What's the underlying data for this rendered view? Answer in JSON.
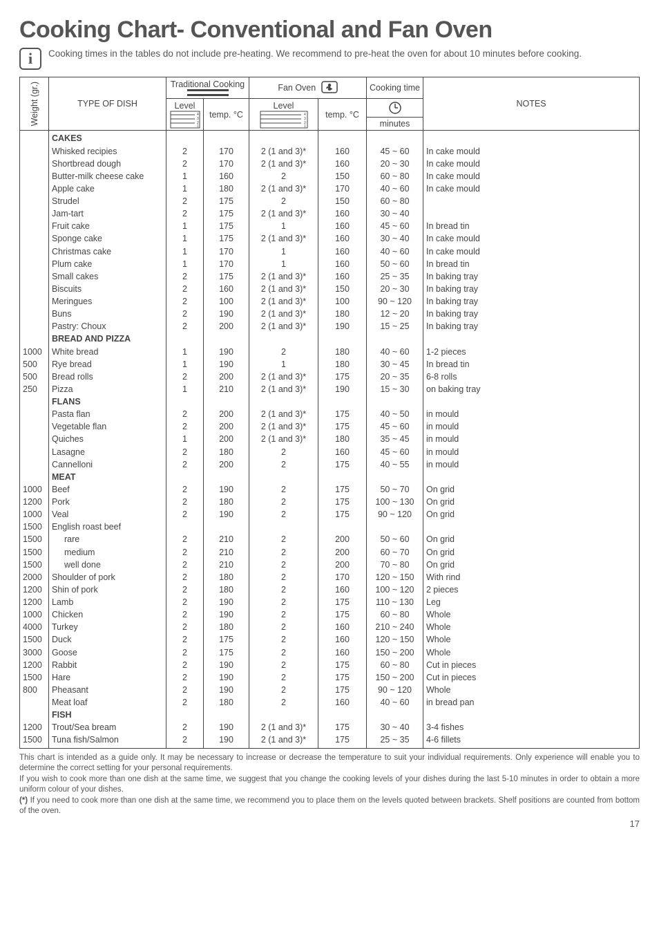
{
  "title": "Cooking Chart- Conventional and Fan Oven",
  "info_text": "Cooking times in the tables do not include pre-heating. We recommend to pre-heat the oven for about 10 minutes before cooking.",
  "header": {
    "weight": "Weight (gr.)",
    "type_of_dish": "TYPE OF DISH",
    "traditional": "Traditional Cooking",
    "fan_oven": "Fan Oven",
    "cooking_time": "Cooking time",
    "level": "Level",
    "temp_c": "temp. °C",
    "minutes": "minutes",
    "notes": "NOTES"
  },
  "sections": [
    {
      "heading": "CAKES",
      "rows": [
        {
          "w": "",
          "dish": "Whisked recipies",
          "l1": "2",
          "t1": "170",
          "l2": "2 (1 and 3)*",
          "t2": "160",
          "time": "45 ~ 60",
          "notes": "In cake mould"
        },
        {
          "w": "",
          "dish": "Shortbread dough",
          "l1": "2",
          "t1": "170",
          "l2": "2 (1 and 3)*",
          "t2": "160",
          "time": "20 ~ 30",
          "notes": "In cake mould"
        },
        {
          "w": "",
          "dish": "Butter-milk cheese cake",
          "l1": "1",
          "t1": "160",
          "l2": "2",
          "t2": "150",
          "time": "60 ~ 80",
          "notes": "In cake mould"
        },
        {
          "w": "",
          "dish": "Apple cake",
          "l1": "1",
          "t1": "180",
          "l2": "2 (1 and 3)*",
          "t2": "170",
          "time": "40 ~ 60",
          "notes": "In cake mould"
        },
        {
          "w": "",
          "dish": "Strudel",
          "l1": "2",
          "t1": "175",
          "l2": "2",
          "t2": "150",
          "time": "60 ~ 80",
          "notes": ""
        },
        {
          "w": "",
          "dish": "Jam-tart",
          "l1": "2",
          "t1": "175",
          "l2": "2 (1 and 3)*",
          "t2": "160",
          "time": "30 ~ 40",
          "notes": ""
        },
        {
          "w": "",
          "dish": "Fruit cake",
          "l1": "1",
          "t1": "175",
          "l2": "1",
          "t2": "160",
          "time": "45 ~ 60",
          "notes": "In bread tin"
        },
        {
          "w": "",
          "dish": "Sponge cake",
          "l1": "1",
          "t1": "175",
          "l2": "2 (1 and 3)*",
          "t2": "160",
          "time": "30 ~ 40",
          "notes": "In cake mould"
        },
        {
          "w": "",
          "dish": "Christmas cake",
          "l1": "1",
          "t1": "170",
          "l2": "1",
          "t2": "160",
          "time": "40 ~ 60",
          "notes": "In cake mould"
        },
        {
          "w": "",
          "dish": "Plum cake",
          "l1": "1",
          "t1": "170",
          "l2": "1",
          "t2": "160",
          "time": "50 ~ 60",
          "notes": "In bread tin"
        },
        {
          "w": "",
          "dish": "Small cakes",
          "l1": "2",
          "t1": "175",
          "l2": "2 (1 and 3)*",
          "t2": "160",
          "time": "25 ~ 35",
          "notes": "In baking tray"
        },
        {
          "w": "",
          "dish": "Biscuits",
          "l1": "2",
          "t1": "160",
          "l2": "2 (1 and 3)*",
          "t2": "150",
          "time": "20 ~ 30",
          "notes": "In baking tray"
        },
        {
          "w": "",
          "dish": "Meringues",
          "l1": "2",
          "t1": "100",
          "l2": "2 (1 and 3)*",
          "t2": "100",
          "time": "90 ~ 120",
          "notes": "In baking tray"
        },
        {
          "w": "",
          "dish": "Buns",
          "l1": "2",
          "t1": "190",
          "l2": "2 (1 and 3)*",
          "t2": "180",
          "time": "12 ~ 20",
          "notes": "In baking tray"
        },
        {
          "w": "",
          "dish": "Pastry: Choux",
          "l1": "2",
          "t1": "200",
          "l2": "2 (1 and 3)*",
          "t2": "190",
          "time": "15 ~ 25",
          "notes": "In baking tray"
        }
      ]
    },
    {
      "heading": "BREAD AND PIZZA",
      "rows": [
        {
          "w": "1000",
          "dish": "White bread",
          "l1": "1",
          "t1": "190",
          "l2": "2",
          "t2": "180",
          "time": "40 ~ 60",
          "notes": "1-2 pieces"
        },
        {
          "w": "500",
          "dish": "Rye bread",
          "l1": "1",
          "t1": "190",
          "l2": "1",
          "t2": "180",
          "time": "30 ~ 45",
          "notes": "In bread tin"
        },
        {
          "w": "500",
          "dish": "Bread rolls",
          "l1": "2",
          "t1": "200",
          "l2": "2 (1 and 3)*",
          "t2": "175",
          "time": "20 ~ 35",
          "notes": "6-8 rolls"
        },
        {
          "w": "250",
          "dish": "Pizza",
          "l1": "1",
          "t1": "210",
          "l2": "2 (1 and 3)*",
          "t2": "190",
          "time": "15 ~ 30",
          "notes": "on baking tray"
        }
      ]
    },
    {
      "heading": "FLANS",
      "rows": [
        {
          "w": "",
          "dish": "Pasta flan",
          "l1": "2",
          "t1": "200",
          "l2": "2 (1 and 3)*",
          "t2": "175",
          "time": "40 ~ 50",
          "notes": "in mould"
        },
        {
          "w": "",
          "dish": "Vegetable flan",
          "l1": "2",
          "t1": "200",
          "l2": "2 (1 and 3)*",
          "t2": "175",
          "time": "45 ~ 60",
          "notes": "in mould"
        },
        {
          "w": "",
          "dish": "Quiches",
          "l1": "1",
          "t1": "200",
          "l2": "2 (1 and 3)*",
          "t2": "180",
          "time": "35 ~ 45",
          "notes": "in mould"
        },
        {
          "w": "",
          "dish": "Lasagne",
          "l1": "2",
          "t1": "180",
          "l2": "2",
          "t2": "160",
          "time": "45 ~ 60",
          "notes": "in mould"
        },
        {
          "w": "",
          "dish": "Cannelloni",
          "l1": "2",
          "t1": "200",
          "l2": "2",
          "t2": "175",
          "time": "40 ~ 55",
          "notes": "in mould"
        }
      ]
    },
    {
      "heading": "MEAT",
      "rows": [
        {
          "w": "1000",
          "dish": "Beef",
          "l1": "2",
          "t1": "190",
          "l2": "2",
          "t2": "175",
          "time": "50 ~ 70",
          "notes": "On grid"
        },
        {
          "w": "1200",
          "dish": "Pork",
          "l1": "2",
          "t1": "180",
          "l2": "2",
          "t2": "175",
          "time": "100 ~ 130",
          "notes": "On grid"
        },
        {
          "w": "1000",
          "dish": "Veal",
          "l1": "2",
          "t1": "190",
          "l2": "2",
          "t2": "175",
          "time": "90 ~ 120",
          "notes": "On grid"
        },
        {
          "w": "1500",
          "dish": "English roast beef",
          "l1": "",
          "t1": "",
          "l2": "",
          "t2": "",
          "time": "",
          "notes": ""
        },
        {
          "w": "1500",
          "dish": "    rare",
          "l1": "2",
          "t1": "210",
          "l2": "2",
          "t2": "200",
          "time": "50 ~ 60",
          "notes": "On grid"
        },
        {
          "w": "1500",
          "dish": "    medium",
          "l1": "2",
          "t1": "210",
          "l2": "2",
          "t2": "200",
          "time": "60 ~ 70",
          "notes": "On grid"
        },
        {
          "w": "1500",
          "dish": "    well done",
          "l1": "2",
          "t1": "210",
          "l2": "2",
          "t2": "200",
          "time": "70 ~ 80",
          "notes": "On grid"
        },
        {
          "w": "2000",
          "dish": "Shoulder of pork",
          "l1": "2",
          "t1": "180",
          "l2": "2",
          "t2": "170",
          "time": "120 ~ 150",
          "notes": "With rind"
        },
        {
          "w": "1200",
          "dish": "Shin of pork",
          "l1": "2",
          "t1": "180",
          "l2": "2",
          "t2": "160",
          "time": "100 ~ 120",
          "notes": "2 pieces"
        },
        {
          "w": "1200",
          "dish": "Lamb",
          "l1": "2",
          "t1": "190",
          "l2": "2",
          "t2": "175",
          "time": "110 ~ 130",
          "notes": "Leg"
        },
        {
          "w": "1000",
          "dish": "Chicken",
          "l1": "2",
          "t1": "190",
          "l2": "2",
          "t2": "175",
          "time": "60 ~ 80",
          "notes": "Whole"
        },
        {
          "w": "4000",
          "dish": "Turkey",
          "l1": "2",
          "t1": "180",
          "l2": "2",
          "t2": "160",
          "time": "210 ~ 240",
          "notes": "Whole"
        },
        {
          "w": "1500",
          "dish": "Duck",
          "l1": "2",
          "t1": "175",
          "l2": "2",
          "t2": "160",
          "time": "120 ~ 150",
          "notes": "Whole"
        },
        {
          "w": "3000",
          "dish": "Goose",
          "l1": "2",
          "t1": "175",
          "l2": "2",
          "t2": "160",
          "time": "150 ~ 200",
          "notes": "Whole"
        },
        {
          "w": "1200",
          "dish": "Rabbit",
          "l1": "2",
          "t1": "190",
          "l2": "2",
          "t2": "175",
          "time": "60 ~ 80",
          "notes": "Cut in pieces"
        },
        {
          "w": "1500",
          "dish": "Hare",
          "l1": "2",
          "t1": "190",
          "l2": "2",
          "t2": "175",
          "time": "150 ~ 200",
          "notes": "Cut in pieces"
        },
        {
          "w": "800",
          "dish": "Pheasant",
          "l1": "2",
          "t1": "190",
          "l2": "2",
          "t2": "175",
          "time": "90 ~ 120",
          "notes": "Whole"
        },
        {
          "w": "",
          "dish": "Meat loaf",
          "l1": "2",
          "t1": "180",
          "l2": "2",
          "t2": "160",
          "time": "40 ~ 60",
          "notes": "in bread pan"
        }
      ]
    },
    {
      "heading": "FISH",
      "rows": [
        {
          "w": "1200",
          "dish": "Trout/Sea bream",
          "l1": "2",
          "t1": "190",
          "l2": "2 (1 and 3)*",
          "t2": "175",
          "time": "30 ~ 40",
          "notes": "3-4 fishes"
        },
        {
          "w": "1500",
          "dish": "Tuna fish/Salmon",
          "l1": "2",
          "t1": "190",
          "l2": "2 (1 and 3)*",
          "t2": "175",
          "time": "25 ~ 35",
          "notes": "4-6 fillets"
        }
      ]
    }
  ],
  "footnotes": [
    "This chart is intended as a guide only. It may be necessary to increase or decrease the temperature to suit your individual requirements. Only experience will enable you to determine the correct setting for your personal requirements.",
    "If you wish to cook more than one dish at the same time, we suggest  that you change the cooking levels of your dishes during the last 5-10 minutes in order to obtain a more uniform colour of your dishes.",
    "(*) If you need to cook more than one dish at the same time, we recommend you to place them on the levels quoted between brackets. Shelf positions are counted from bottom of the oven."
  ],
  "page_number": "17",
  "colors": {
    "text": "#444444",
    "border": "#444444",
    "background": "#ffffff"
  }
}
